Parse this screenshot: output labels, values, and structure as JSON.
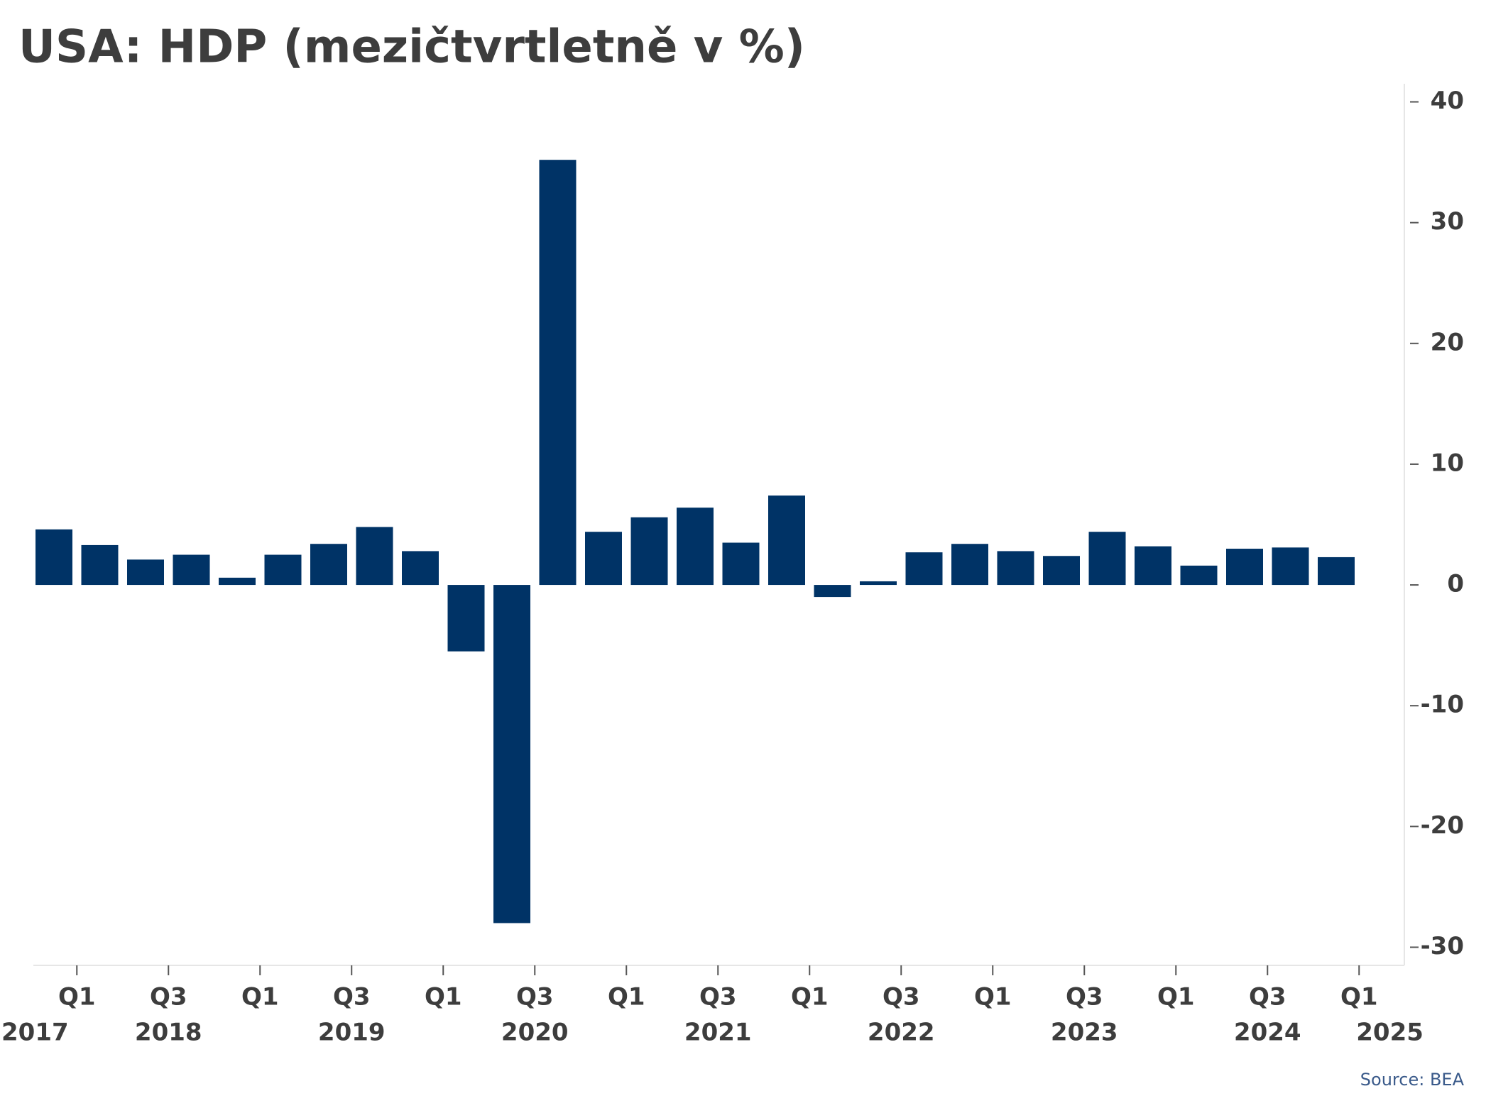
{
  "chart_data": {
    "type": "bar",
    "title": "USA: HDP (mezičtvrtletně v %)",
    "categories": [
      null,
      null,
      null,
      null,
      null,
      null,
      null,
      null,
      null,
      null,
      null,
      null,
      null,
      null,
      null,
      null,
      null,
      null,
      null,
      null,
      null,
      null,
      null,
      null,
      null,
      null,
      null,
      null,
      null
    ],
    "values": [
      4.6,
      3.3,
      2.1,
      2.5,
      0.6,
      2.5,
      3.4,
      4.8,
      2.8,
      -5.5,
      -28.0,
      35.2,
      4.4,
      5.6,
      6.4,
      3.5,
      7.4,
      -1.0,
      0.3,
      2.7,
      3.4,
      2.8,
      2.4,
      4.4,
      3.2,
      1.6,
      3.0,
      3.1,
      2.3
    ],
    "color": "#003366",
    "ylim": [
      -31.5,
      41.5
    ],
    "yticks": [
      -30,
      -20,
      -10,
      0,
      10,
      20,
      30,
      40
    ],
    "xticks": [
      {
        "label": "Q1",
        "year": "2017"
      },
      {
        "label": "Q3",
        "year": "2018"
      },
      {
        "label": "Q1"
      },
      {
        "label": "Q3",
        "year": "2019"
      },
      {
        "label": "Q1"
      },
      {
        "label": "Q3",
        "year": "2020"
      },
      {
        "label": "Q1"
      },
      {
        "label": "Q3",
        "year": "2021"
      },
      {
        "label": "Q1"
      },
      {
        "label": "Q3",
        "year": "2022"
      },
      {
        "label": "Q1"
      },
      {
        "label": "Q3",
        "year": "2023"
      },
      {
        "label": "Q1"
      },
      {
        "label": "Q3",
        "year": "2024"
      },
      {
        "label": "Q1",
        "year": "2025"
      }
    ],
    "source": "Source: BEA",
    "y_axis_side": "right"
  }
}
